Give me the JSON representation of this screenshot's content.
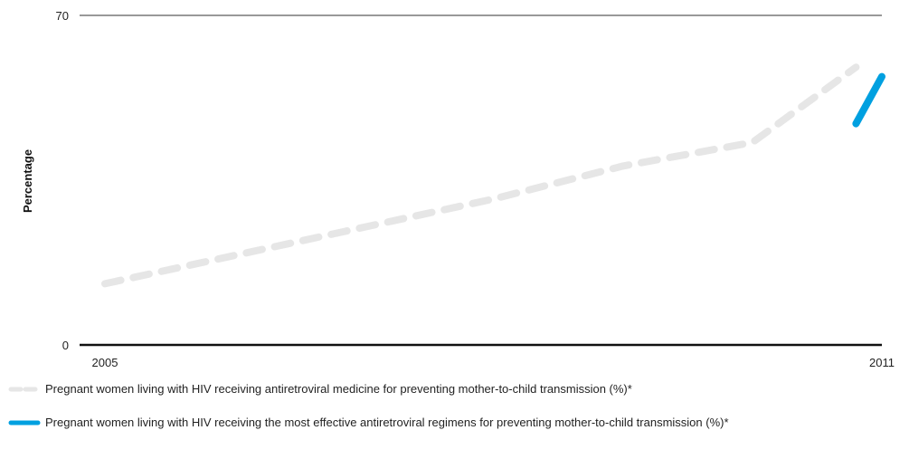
{
  "chart_data": {
    "type": "line",
    "title": "",
    "ylabel": "Percentage",
    "xlabel": "",
    "ylim": [
      0,
      70
    ],
    "y_ticks": [
      0,
      70
    ],
    "x_tick_labels": [
      "2005",
      "2011"
    ],
    "grid": false,
    "legend_placement": "bottom",
    "series": [
      {
        "name": "Pregnant women living with HIV receiving antiretroviral medicine for preventing mother-to-child transmission (%)*",
        "color": "#e6e6e6",
        "style": "dashed",
        "points": [
          {
            "x": 2005.0,
            "y": 13
          },
          {
            "x": 2006.0,
            "y": 19
          },
          {
            "x": 2007.0,
            "y": 25
          },
          {
            "x": 2008.0,
            "y": 31
          },
          {
            "x": 2009.0,
            "y": 38
          },
          {
            "x": 2010.0,
            "y": 43
          },
          {
            "x": 2010.4,
            "y": 51
          },
          {
            "x": 2010.8,
            "y": 59
          }
        ]
      },
      {
        "name": "Pregnant women living with HIV receiving the most effective antiretroviral regimens for preventing mother-to-child transmission (%)*",
        "color": "#00a0e0",
        "style": "solid",
        "points": [
          {
            "x": 2010.8,
            "y": 47
          },
          {
            "x": 2011.0,
            "y": 57
          }
        ]
      }
    ]
  }
}
